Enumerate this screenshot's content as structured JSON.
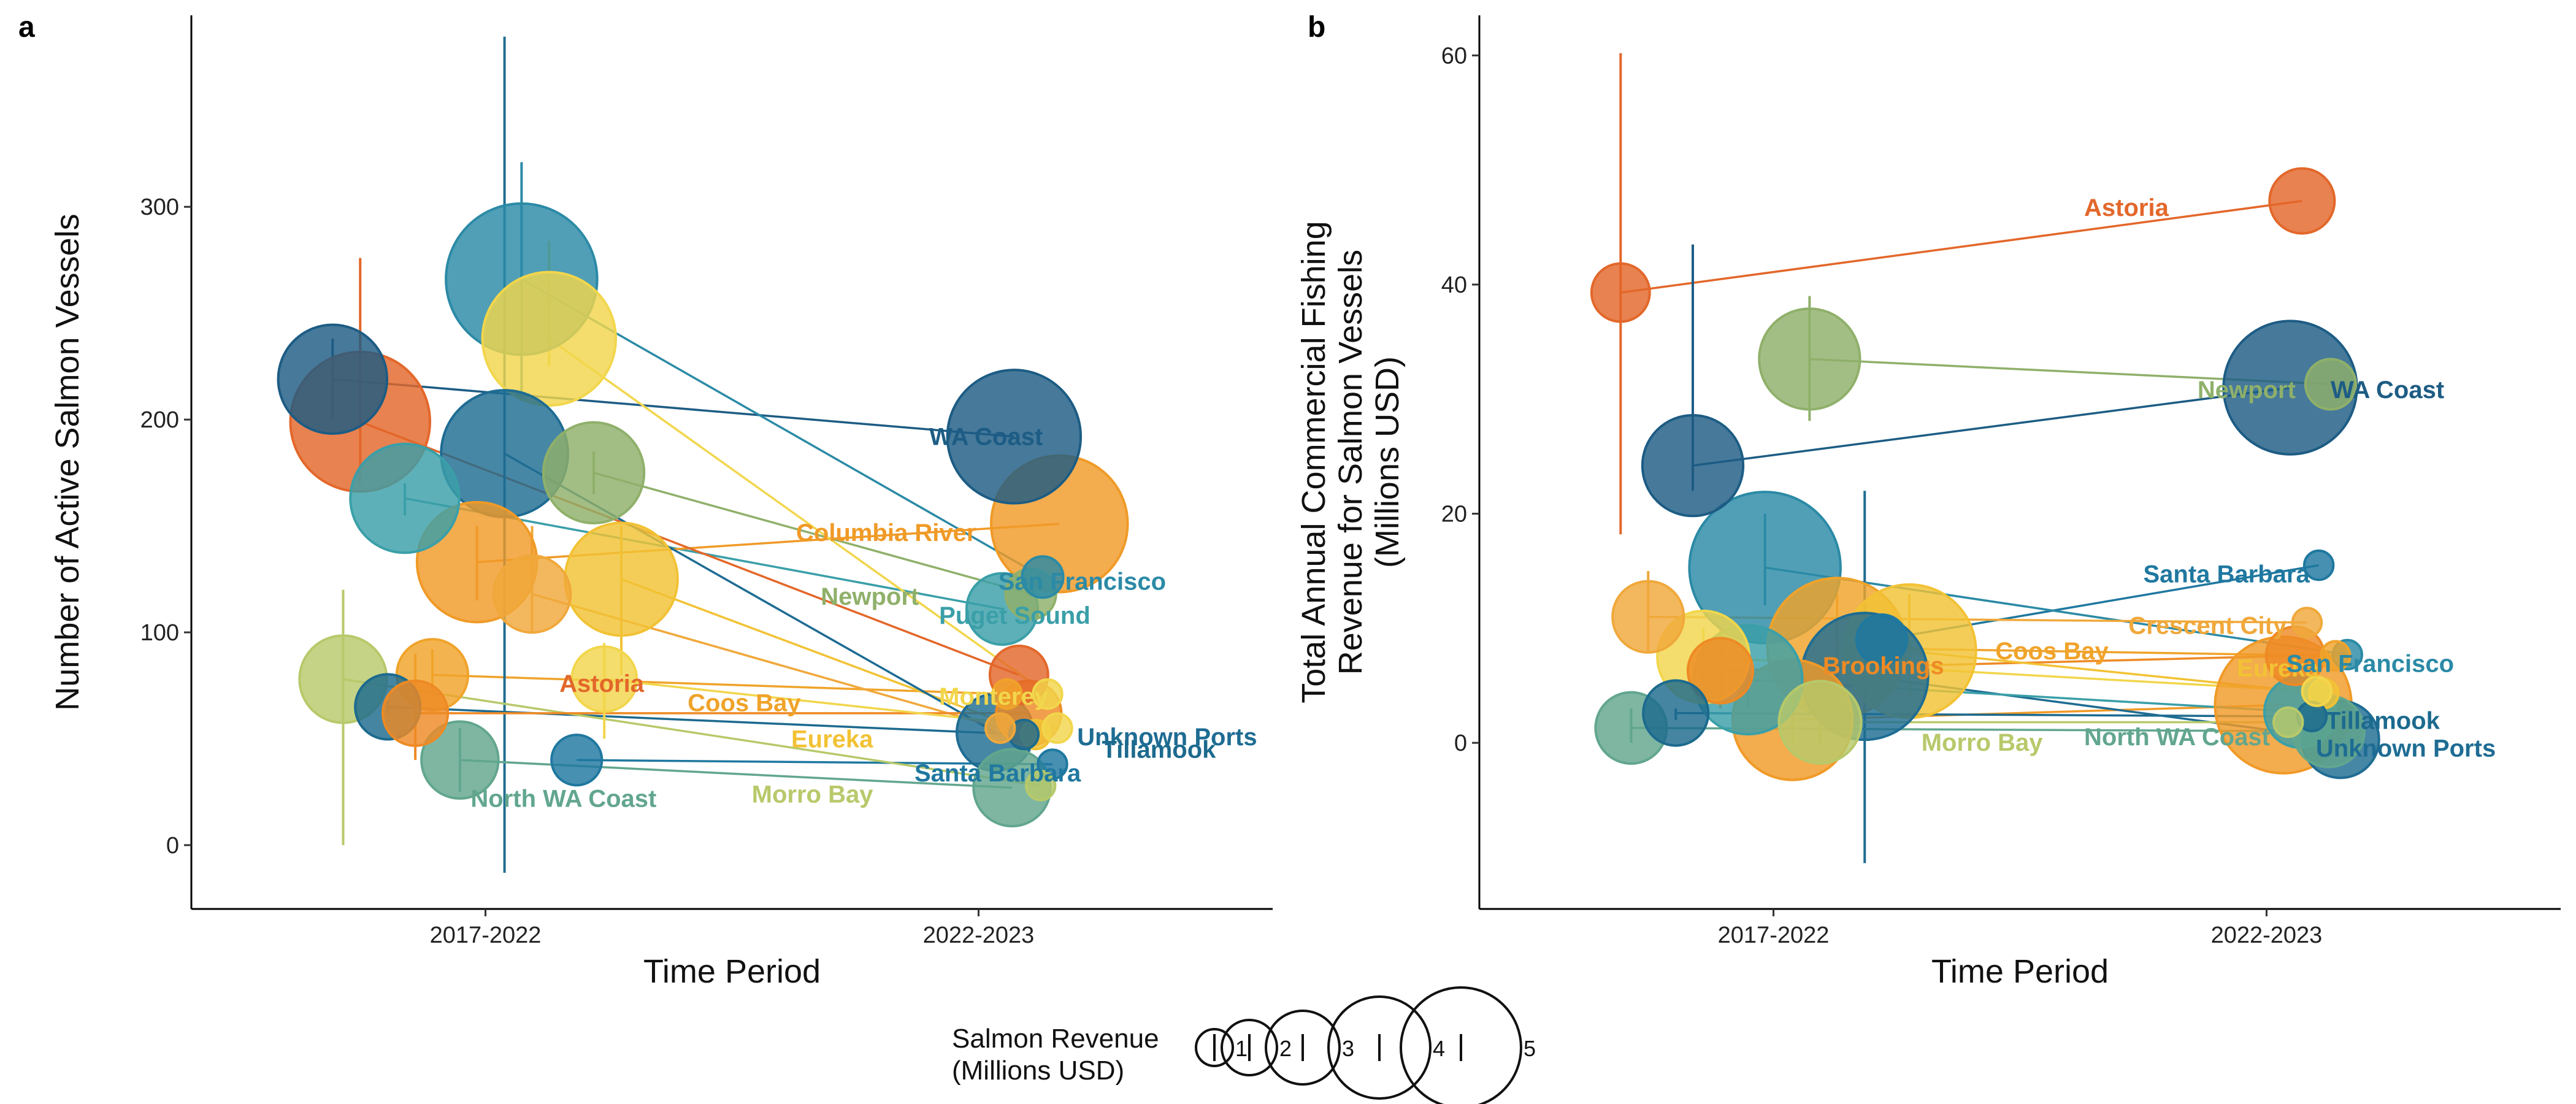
{
  "chart_data": [
    {
      "panel": "a",
      "type": "scatter",
      "xlabel": "Time Period",
      "ylabel": "Number of Active Salmon Vessels",
      "x_categories": [
        "2017-2022",
        "2022-2023"
      ],
      "ylim": [
        -30,
        390
      ],
      "y_ticks": [
        0,
        100,
        200,
        300
      ],
      "grid": false,
      "ports": [
        {
          "name": "WA Coast",
          "color": "#1d5c84",
          "p1": {
            "y": 219,
            "lo": 200,
            "hi": 238,
            "rev": 1.4
          },
          "p2": {
            "y": 192,
            "lo": 192,
            "hi": 192,
            "rev": 2.1
          }
        },
        {
          "name": "San Francisco",
          "color": "#2b8aa6",
          "p1": {
            "y": 266,
            "lo": 210,
            "hi": 321,
            "rev": 2.7
          },
          "p2": {
            "y": 126,
            "lo": 126,
            "hi": 126,
            "rev": 0.2
          }
        },
        {
          "name": "Puget Sound",
          "color": "#3a9fa8",
          "p1": {
            "y": 163,
            "lo": 155,
            "hi": 170,
            "rev": 1.4
          },
          "p2": {
            "y": 111,
            "lo": 111,
            "hi": 111,
            "rev": 0.6
          }
        },
        {
          "name": "Newport",
          "color": "#8fb06a",
          "p1": {
            "y": 175,
            "lo": 165,
            "hi": 185,
            "rev": 1.2
          },
          "p2": {
            "y": 118,
            "lo": 118,
            "hi": 118,
            "rev": 0.3
          }
        },
        {
          "name": "Columbia River",
          "color": "#f09a27",
          "p1": {
            "y": 133,
            "lo": 115,
            "hi": 150,
            "rev": 1.7
          },
          "p2": {
            "y": 151,
            "lo": 151,
            "hi": 151,
            "rev": 2.2
          }
        },
        {
          "name": "Astoria",
          "color": "#e3672a",
          "p1": {
            "y": 199,
            "lo": 170,
            "hi": 276,
            "rev": 2.3
          },
          "p2": {
            "y": 80,
            "lo": 80,
            "hi": 80,
            "rev": 0.4
          }
        },
        {
          "name": "Monterey",
          "color": "#f2d64c",
          "p1": {
            "y": 238,
            "lo": 225,
            "hi": 284,
            "rev": 2.1
          },
          "p2": {
            "y": 71,
            "lo": 71,
            "hi": 71,
            "rev": 0.1
          }
        },
        {
          "name": "Coos Bay",
          "color": "#f0a32a",
          "p1": {
            "y": 80,
            "lo": 70,
            "hi": 92,
            "rev": 0.6
          },
          "p2": {
            "y": 71,
            "lo": 71,
            "hi": 71,
            "rev": 0.1
          }
        },
        {
          "name": "Eureka",
          "color": "#f2c234",
          "p1": {
            "y": 125,
            "lo": 80,
            "hi": 150,
            "rev": 1.5
          },
          "p2": {
            "y": 52,
            "lo": 52,
            "hi": 52,
            "rev": 0.1
          }
        },
        {
          "name": "Unknown Ports",
          "color": "#1e6c93",
          "p1": {
            "y": 184,
            "lo": -13,
            "hi": 380,
            "rev": 1.9
          },
          "p2": {
            "y": 53,
            "lo": 53,
            "hi": 53,
            "rev": 0.7
          }
        },
        {
          "name": "Tillamook",
          "color": "#1c6a8e",
          "p1": {
            "y": 65,
            "lo": 62,
            "hi": 68,
            "rev": 0.5
          },
          "p2": {
            "y": 52,
            "lo": 52,
            "hi": 52,
            "rev": 0.1
          }
        },
        {
          "name": "Santa Barbara",
          "color": "#1f78a0",
          "p1": {
            "y": 40,
            "lo": 40,
            "hi": 40,
            "rev": 0.3
          },
          "p2": {
            "y": 38,
            "lo": 38,
            "hi": 38,
            "rev": 0.1
          }
        },
        {
          "name": "North WA Coast",
          "color": "#62a68e",
          "p1": {
            "y": 40,
            "lo": 25,
            "hi": 55,
            "rev": 0.7
          },
          "p2": {
            "y": 27,
            "lo": 27,
            "hi": 27,
            "rev": 0.7
          }
        },
        {
          "name": "Morro Bay",
          "color": "#b7c96a",
          "p1": {
            "y": 78,
            "lo": 0,
            "hi": 120,
            "rev": 0.9
          },
          "p2": {
            "y": 28,
            "lo": 28,
            "hi": 28,
            "rev": 0.1
          }
        },
        {
          "name": "Crescent City",
          "color": "#f0a83a",
          "p1": {
            "y": 118,
            "lo": 100,
            "hi": 150,
            "rev": 0.7
          },
          "p2": {
            "y": 55,
            "lo": 55,
            "hi": 55,
            "rev": 0.1
          }
        },
        {
          "name": "Brookings",
          "color": "#ee8a24",
          "p1": {
            "y": 62,
            "lo": 40,
            "hi": 90,
            "rev": 0.5
          },
          "p2": {
            "y": 62,
            "lo": 62,
            "hi": 62,
            "rev": 0.5
          }
        },
        {
          "name": "",
          "color": "#f2d64c",
          "p1": {
            "y": 78,
            "lo": 50,
            "hi": 95,
            "rev": 0.5
          },
          "p2": {
            "y": 55,
            "lo": 55,
            "hi": 55,
            "rev": 0.1
          }
        }
      ],
      "labels": [
        {
          "text": "WA Coast",
          "color": "#1d5c84",
          "x": 1.9,
          "y": 188
        },
        {
          "text": "San Francisco",
          "color": "#2b8aa6",
          "x": 2.04,
          "y": 120
        },
        {
          "text": "Columbia River",
          "color": "#f09a27",
          "x": 1.63,
          "y": 143
        },
        {
          "text": "Puget Sound",
          "color": "#3a9fa8",
          "x": 1.92,
          "y": 104
        },
        {
          "text": "Newport",
          "color": "#8fb06a",
          "x": 1.68,
          "y": 113
        },
        {
          "text": "Astoria",
          "color": "#e3672a",
          "x": 1.15,
          "y": 72
        },
        {
          "text": "Monterey",
          "color": "#f2d64c",
          "x": 1.92,
          "y": 66
        },
        {
          "text": "Coos Bay",
          "color": "#f0a32a",
          "x": 1.41,
          "y": 63
        },
        {
          "text": "Eureka",
          "color": "#f2c234",
          "x": 1.62,
          "y": 46
        },
        {
          "text": "Unknown Ports",
          "color": "#1e6c93",
          "x": 2.2,
          "y": 47
        },
        {
          "text": "Tillamook",
          "color": "#1c6a8e",
          "x": 2.25,
          "y": 41
        },
        {
          "text": "Santa Barbara",
          "color": "#1f78a0",
          "x": 1.87,
          "y": 30
        },
        {
          "text": "North WA Coast",
          "color": "#62a68e",
          "x": 0.97,
          "y": 18
        },
        {
          "text": "Morro Bay",
          "color": "#b7c96a",
          "x": 1.54,
          "y": 20
        }
      ]
    },
    {
      "panel": "b",
      "type": "scatter",
      "xlabel": "Time Period",
      "ylabel": [
        "Total Annual Commercial Fishing",
        "Revenue for Salmon Vessels",
        "(Millions USD)"
      ],
      "x_categories": [
        "2017-2022",
        "2022-2023"
      ],
      "ylim": [
        -14.5,
        63.5
      ],
      "y_ticks": [
        0,
        20,
        40,
        60
      ],
      "grid": false,
      "ports": [
        {
          "name": "Astoria",
          "color": "#e3672a",
          "p1": {
            "y": 39.3,
            "lo": 18.2,
            "hi": 60.2,
            "rev": 0.4
          },
          "p2": {
            "y": 47.3,
            "lo": 47.3,
            "hi": 47.3,
            "rev": 0.5
          }
        },
        {
          "name": "Newport",
          "color": "#8fb06a",
          "p1": {
            "y": 33.5,
            "lo": 28.1,
            "hi": 39,
            "rev": 1.2
          },
          "p2": {
            "y": 31.3,
            "lo": 31.3,
            "hi": 31.3,
            "rev": 0.3
          }
        },
        {
          "name": "WA Coast",
          "color": "#1d5c84",
          "p1": {
            "y": 24.2,
            "lo": 22,
            "hi": 43.5,
            "rev": 1.2
          },
          "p2": {
            "y": 31,
            "lo": 31,
            "hi": 31,
            "rev": 2.1
          }
        },
        {
          "name": "Santa Barbara",
          "color": "#1f78a0",
          "p1": {
            "y": 9,
            "lo": 8,
            "hi": 10,
            "rev": 0.3
          },
          "p2": {
            "y": 15.5,
            "lo": 15.5,
            "hi": 15.5,
            "rev": 0.1
          }
        },
        {
          "name": "San Francisco",
          "color": "#2b8aa6",
          "p1": {
            "y": 15.3,
            "lo": 12,
            "hi": 20,
            "rev": 2.7
          },
          "p2": {
            "y": 7.7,
            "lo": 7.7,
            "hi": 7.7,
            "rev": 0.1
          }
        },
        {
          "name": "Crescent City",
          "color": "#f0a83a",
          "p1": {
            "y": 11,
            "lo": 8,
            "hi": 15,
            "rev": 0.6
          },
          "p2": {
            "y": 10.5,
            "lo": 10.5,
            "hi": 10.5,
            "rev": 0.1
          }
        },
        {
          "name": "Coos Bay",
          "color": "#f0a32a",
          "p1": {
            "y": 8.3,
            "lo": 5,
            "hi": 13,
            "rev": 2.3
          },
          "p2": {
            "y": 7.6,
            "lo": 7.6,
            "hi": 7.6,
            "rev": 0.1
          }
        },
        {
          "name": "Brookings",
          "color": "#ee8a24",
          "p1": {
            "y": 6.3,
            "lo": 3,
            "hi": 10,
            "rev": 0.5
          },
          "p2": {
            "y": 7.6,
            "lo": 7.6,
            "hi": 7.6,
            "rev": 0.4
          }
        },
        {
          "name": "Eureka",
          "color": "#f2c234",
          "p1": {
            "y": 8,
            "lo": 4,
            "hi": 13,
            "rev": 2.1
          },
          "p2": {
            "y": 4.3,
            "lo": 4.3,
            "hi": 4.3,
            "rev": 0.1
          }
        },
        {
          "name": "Columbia River",
          "color": "#f09a27",
          "p1": {
            "y": 2,
            "lo": 0,
            "hi": 6,
            "rev": 1.7
          },
          "p2": {
            "y": 3.3,
            "lo": 3.3,
            "hi": 3.3,
            "rev": 2.2
          }
        },
        {
          "name": "Tillamook",
          "color": "#1c6a8e",
          "p1": {
            "y": 2.6,
            "lo": 2,
            "hi": 3,
            "rev": 0.5
          },
          "p2": {
            "y": 2.3,
            "lo": 2.3,
            "hi": 2.3,
            "rev": 0.1
          }
        },
        {
          "name": "Unknown Ports",
          "color": "#1e6c93",
          "p1": {
            "y": 5.8,
            "lo": -10.5,
            "hi": 22,
            "rev": 1.9
          },
          "p2": {
            "y": 0.3,
            "lo": 0.3,
            "hi": 0.3,
            "rev": 0.7
          }
        },
        {
          "name": "Puget Sound",
          "color": "#3a9fa8",
          "p1": {
            "y": 5.5,
            "lo": 3,
            "hi": 7,
            "rev": 1.4
          },
          "p2": {
            "y": 2.7,
            "lo": 2.7,
            "hi": 2.7,
            "rev": 0.6
          }
        },
        {
          "name": "North WA Coast",
          "color": "#62a68e",
          "p1": {
            "y": 1.3,
            "lo": 0,
            "hi": 3,
            "rev": 0.6
          },
          "p2": {
            "y": 1,
            "lo": 1,
            "hi": 1,
            "rev": 0.6
          }
        },
        {
          "name": "Morro Bay",
          "color": "#b7c96a",
          "p1": {
            "y": 1.8,
            "lo": 0,
            "hi": 4,
            "rev": 0.8
          },
          "p2": {
            "y": 1.8,
            "lo": 1.8,
            "hi": 1.8,
            "rev": 0.1
          }
        },
        {
          "name": "",
          "color": "#f2d64c",
          "p1": {
            "y": 7.5,
            "lo": 5,
            "hi": 10,
            "rev": 1.0
          },
          "p2": {
            "y": 4.5,
            "lo": 4.5,
            "hi": 4.5,
            "rev": 0.1
          }
        }
      ],
      "labels": [
        {
          "text": "Astoria",
          "color": "#e3672a",
          "x": 1.63,
          "y": 46
        },
        {
          "text": "Newport",
          "color": "#8fb06a",
          "x": 1.86,
          "y": 30.1
        },
        {
          "text": "WA Coast",
          "color": "#1d5c84",
          "x": 2.13,
          "y": 30.1
        },
        {
          "text": "Santa Barbara",
          "color": "#1f78a0",
          "x": 1.75,
          "y": 14
        },
        {
          "text": "Crescent City",
          "color": "#f0a83a",
          "x": 1.72,
          "y": 9.5
        },
        {
          "text": "Coos Bay",
          "color": "#f0a32a",
          "x": 1.45,
          "y": 7.3
        },
        {
          "text": "Brookings",
          "color": "#ee8a24",
          "x": 1.1,
          "y": 6
        },
        {
          "text": "Eureka",
          "color": "#f2c234",
          "x": 1.94,
          "y": 5.8
        },
        {
          "text": "San Francisco",
          "color": "#2b8aa6",
          "x": 2.04,
          "y": 6.2
        },
        {
          "text": "Tillamook",
          "color": "#1c6a8e",
          "x": 2.12,
          "y": 1.2
        },
        {
          "text": "Unknown Ports",
          "color": "#1e6c93",
          "x": 2.1,
          "y": -1.2
        },
        {
          "text": "Morro Bay",
          "color": "#b7c96a",
          "x": 1.3,
          "y": -0.7
        },
        {
          "text": "North WA Coast",
          "color": "#62a68e",
          "x": 1.63,
          "y": -0.2
        }
      ]
    }
  ],
  "legend": {
    "title": [
      "Salmon Revenue",
      "(Millions USD)"
    ],
    "items": [
      {
        "label": "1",
        "value": 1
      },
      {
        "label": "2",
        "value": 2
      },
      {
        "label": "3",
        "value": 3
      },
      {
        "label": "4",
        "value": 4
      },
      {
        "label": "5",
        "value": 5
      }
    ]
  },
  "panel_letters": [
    "a",
    "b"
  ]
}
